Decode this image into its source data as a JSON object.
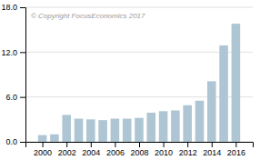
{
  "chart_data": {
    "type": "bar",
    "x": [
      2000,
      2001,
      2002,
      2003,
      2004,
      2005,
      2006,
      2007,
      2008,
      2009,
      2010,
      2011,
      2012,
      2013,
      2014,
      2015,
      2016
    ],
    "values": [
      0.9,
      1.0,
      3.6,
      3.1,
      3.0,
      2.9,
      3.1,
      3.1,
      3.2,
      3.9,
      4.1,
      4.2,
      4.9,
      5.5,
      8.1,
      12.9,
      15.8
    ],
    "color": "#aec6d4",
    "xlim": [
      1998.6,
      2017.4
    ],
    "xticks": [
      2000,
      2002,
      2004,
      2006,
      2008,
      2010,
      2012,
      2014,
      2016
    ],
    "ylim": [
      0,
      18.0
    ],
    "yticks": [
      {
        "value": 0.0,
        "label": "0.0"
      },
      {
        "value": 6.0,
        "label": "6.0"
      },
      {
        "value": 12.0,
        "label": "12.0"
      },
      {
        "value": 18.0,
        "label": "18.0"
      }
    ],
    "grid": true,
    "annotations": [
      "© Copyright FocusEconomics  2017"
    ]
  }
}
